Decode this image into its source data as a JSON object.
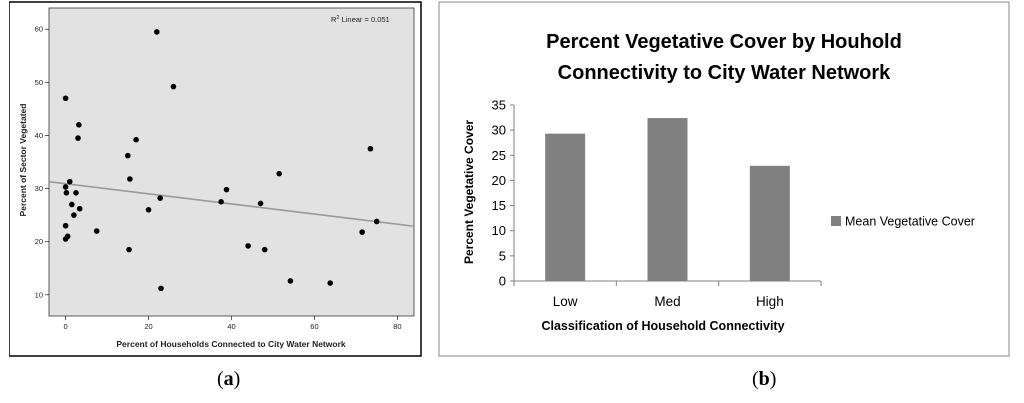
{
  "chart_data": [
    {
      "type": "scatter",
      "xlabel": "Percent of Households Connected to City Water Network",
      "ylabel": "Percent of Sector Vegetated",
      "annotation_prefix": "R",
      "annotation_sup": "2",
      "annotation_rest": " Linear = 0.051",
      "xlim": [
        -4,
        84
      ],
      "ylim": [
        6,
        64
      ],
      "xticks": [
        0,
        20,
        40,
        60,
        80
      ],
      "yticks": [
        10,
        20,
        30,
        40,
        50,
        60
      ],
      "points": [
        [
          0,
          47
        ],
        [
          0,
          30.3
        ],
        [
          0.2,
          29.2
        ],
        [
          1,
          31.3
        ],
        [
          1.5,
          27
        ],
        [
          2,
          25
        ],
        [
          2.5,
          29.2
        ],
        [
          3,
          39.5
        ],
        [
          3.2,
          42
        ],
        [
          3.4,
          26.2
        ],
        [
          0,
          23
        ],
        [
          0.5,
          21
        ],
        [
          0,
          20.5
        ],
        [
          7.5,
          22
        ],
        [
          15,
          36.2
        ],
        [
          15.5,
          31.8
        ],
        [
          17,
          39.2
        ],
        [
          15.3,
          18.5
        ],
        [
          20,
          26
        ],
        [
          22,
          59.5
        ],
        [
          22.8,
          28.2
        ],
        [
          23,
          11.2
        ],
        [
          26,
          49.2
        ],
        [
          37.5,
          27.5
        ],
        [
          38.8,
          29.8
        ],
        [
          44,
          19.2
        ],
        [
          47,
          27.2
        ],
        [
          48,
          18.5
        ],
        [
          51.5,
          32.8
        ],
        [
          54.2,
          12.6
        ],
        [
          63.8,
          12.2
        ],
        [
          71.5,
          21.8
        ],
        [
          73.5,
          37.5
        ],
        [
          75,
          23.8
        ]
      ],
      "regression": {
        "x1": -4,
        "y1": 31.3,
        "x2": 84,
        "y2": 22.9
      }
    },
    {
      "type": "bar",
      "title_line1": "Percent Vegetative Cover by Houhold",
      "title_line2": "Connectivity to City Water Network",
      "categories": [
        "Low",
        "Med",
        "High"
      ],
      "values": [
        29.3,
        32.4,
        22.9
      ],
      "xlabel": "Classification of Household Connectivity",
      "ylabel": "Percent Vegetative Cover",
      "ylim": [
        0,
        35
      ],
      "yticks": [
        0,
        5,
        10,
        15,
        20,
        25,
        30,
        35
      ],
      "legend": "Mean Vegetative Cover",
      "bar_color": "#808080"
    }
  ],
  "captions": {
    "a_open": "(",
    "a_letter": "a",
    "a_close": ")",
    "b_open": "(",
    "b_letter": "b",
    "b_close": ")"
  }
}
